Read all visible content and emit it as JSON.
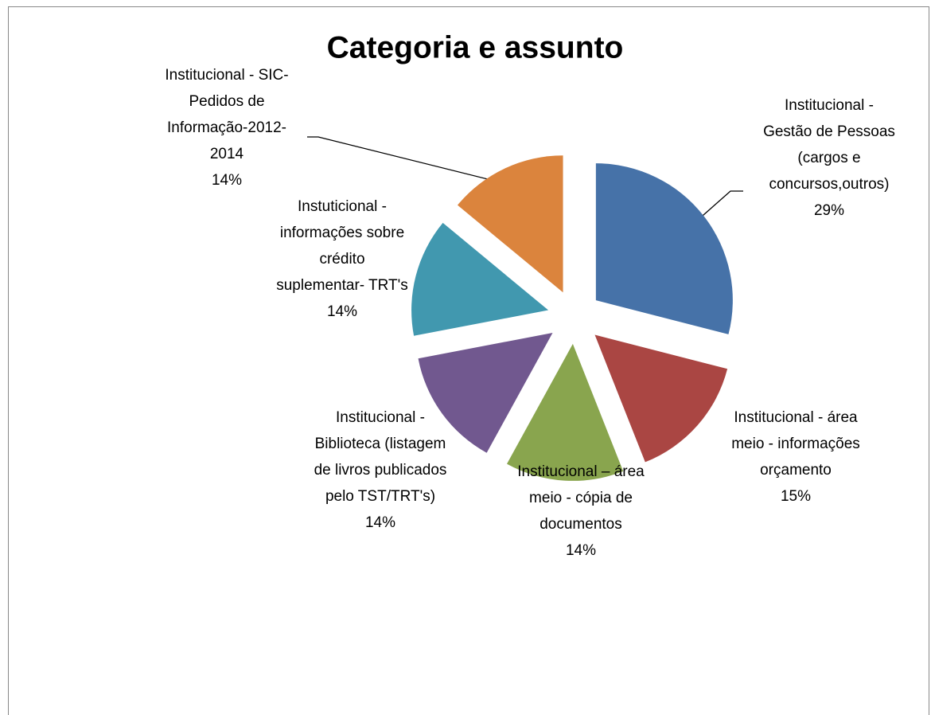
{
  "chart_data": {
    "type": "pie",
    "title": "Categoria e assunto",
    "categories": [
      [
        "Institucional  -",
        "Gestão de Pessoas",
        "(cargos  e",
        "concursos,outros)"
      ],
      [
        "Institucional - área",
        "meio - informações",
        "orçamento"
      ],
      [
        "Institucional – área",
        "meio - cópia de",
        "documentos"
      ],
      [
        "Institucional -",
        "Biblioteca (listagem",
        "de livros publicados",
        "pelo TST/TRT's)"
      ],
      [
        "Instuticional -",
        "informações sobre",
        "crédito",
        "suplementar- TRT's"
      ],
      [
        "Institucional - SIC-",
        "Pedidos de",
        "Informação-2012-",
        "2014"
      ]
    ],
    "values": [
      29,
      15,
      14,
      14,
      14,
      14
    ],
    "value_labels": [
      "29%",
      "15%",
      "14%",
      "14%",
      "14%",
      "14%"
    ],
    "colors": [
      "#4672a8",
      "#aa4643",
      "#89a54e",
      "#71588f",
      "#4198af",
      "#db843d"
    ]
  }
}
